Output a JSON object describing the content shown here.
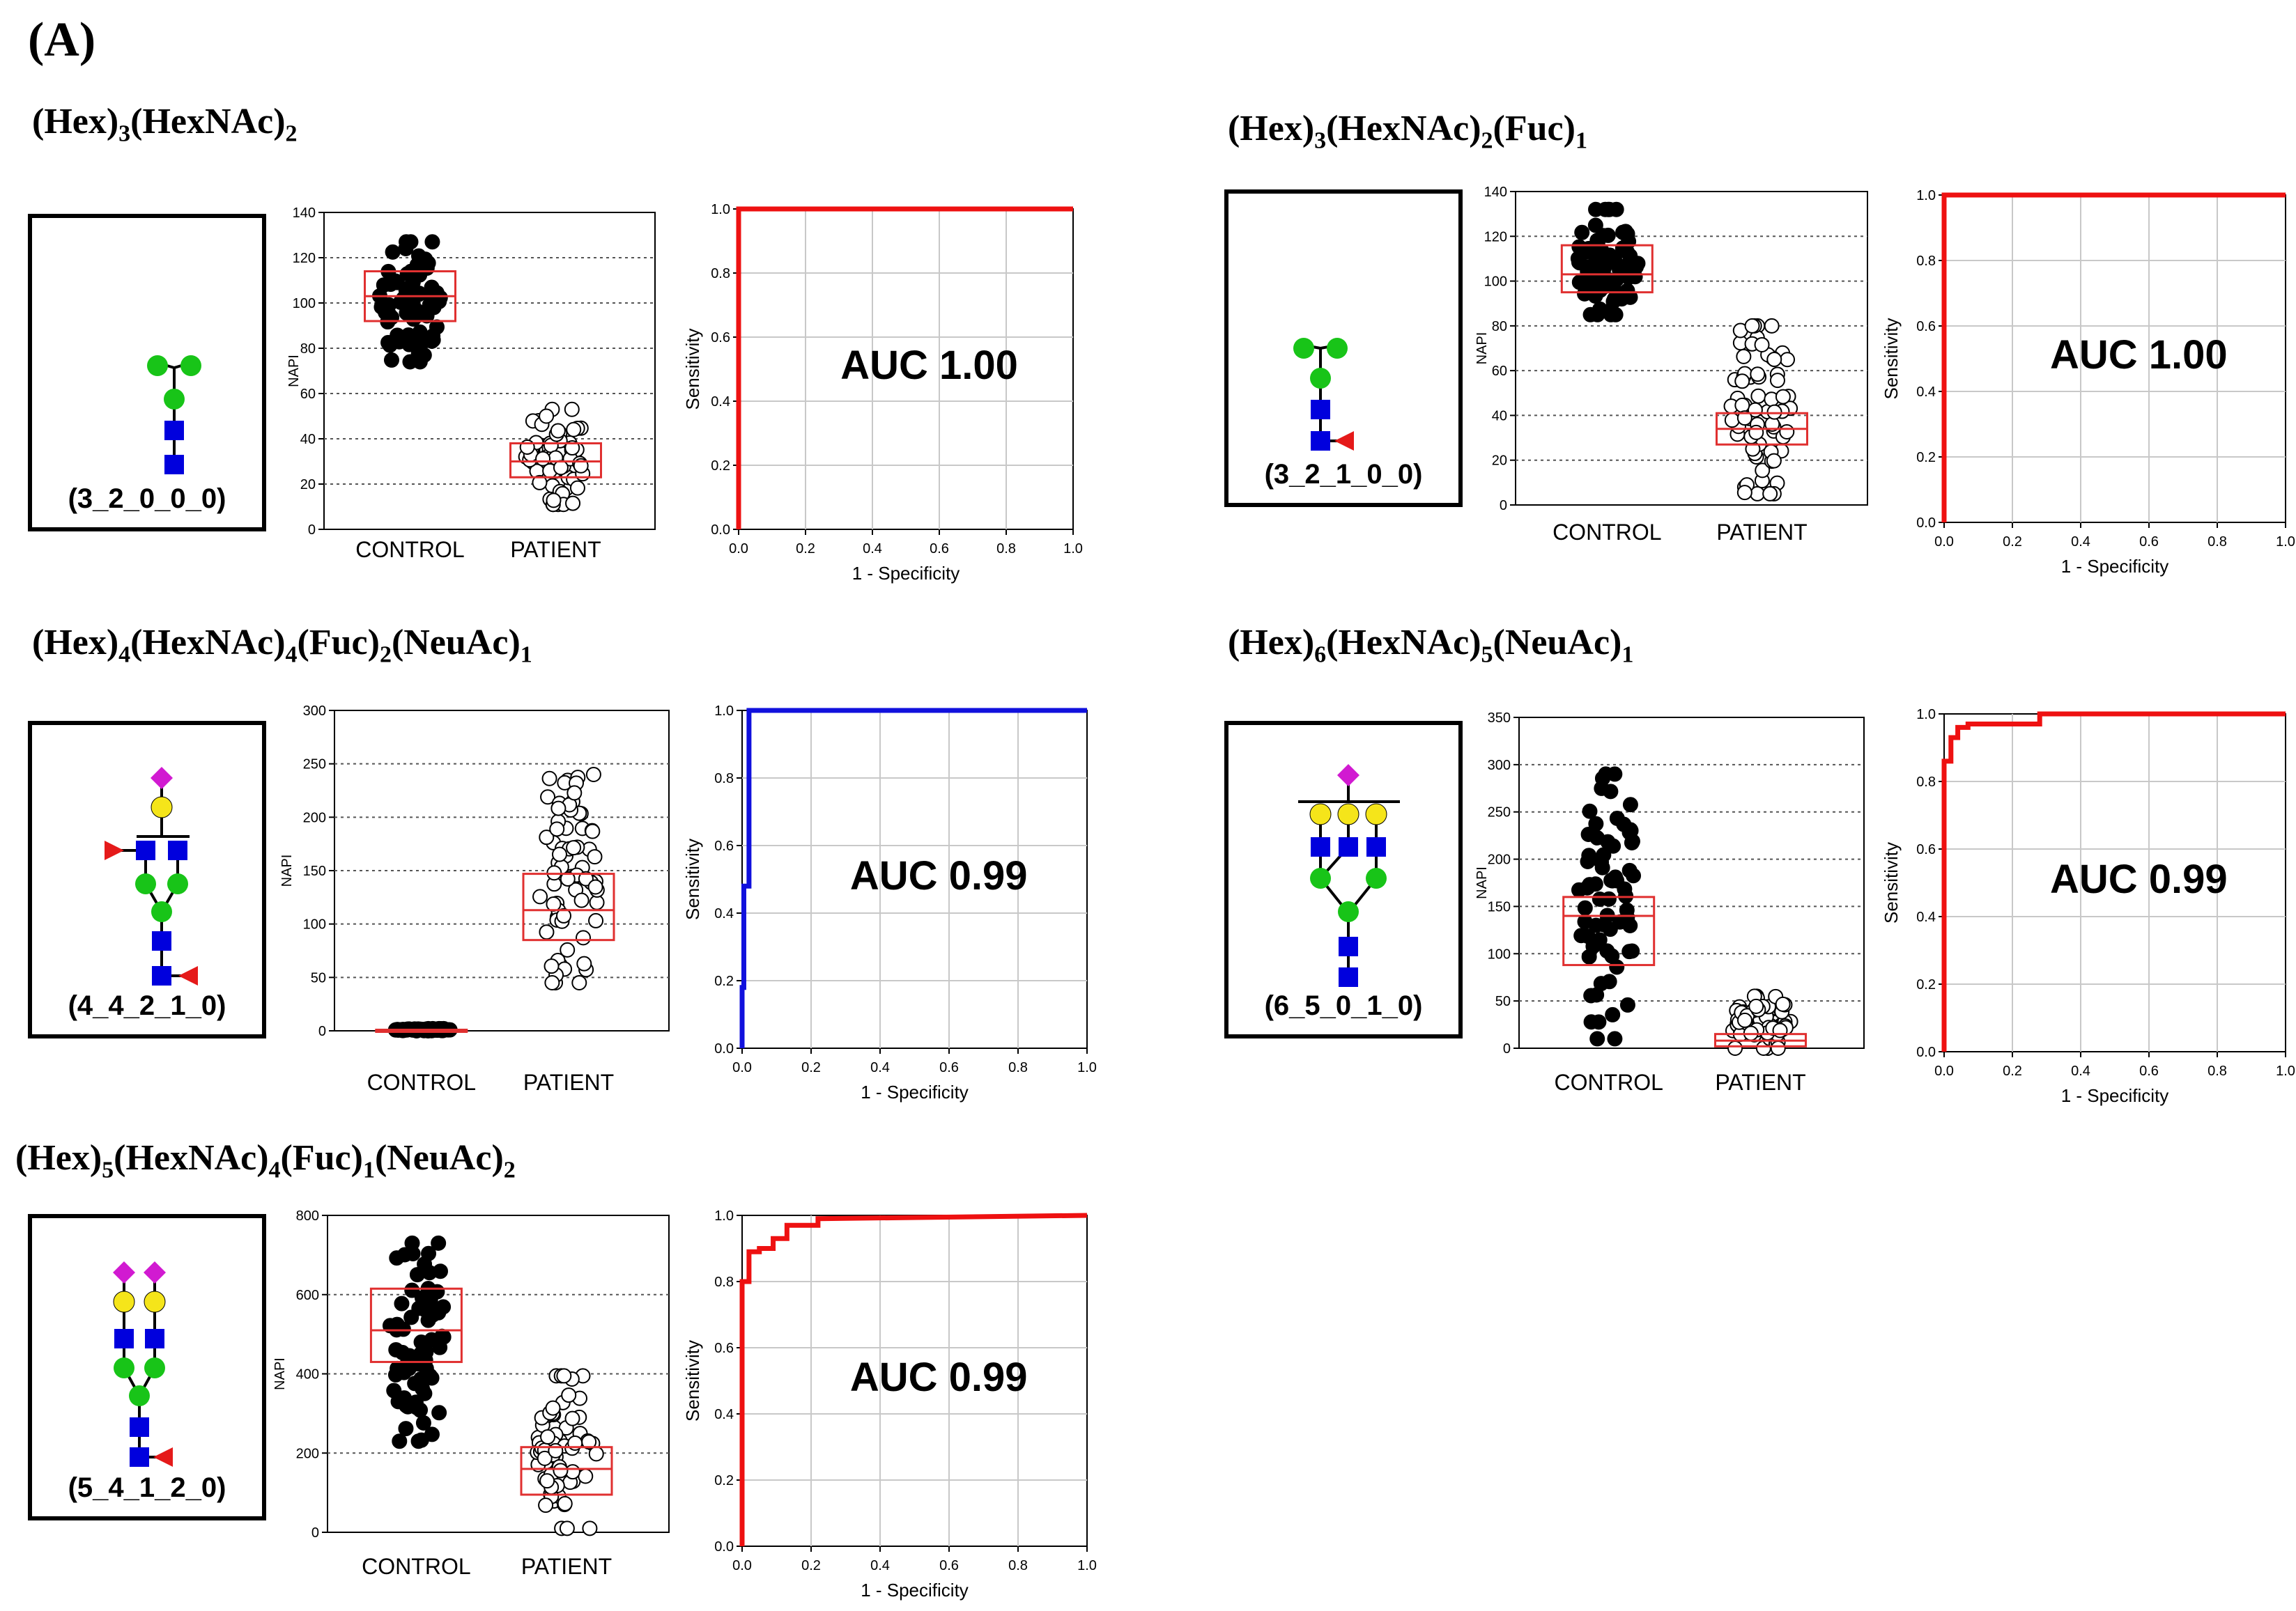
{
  "panel_label": "(A)",
  "colors": {
    "hex_circle": "#18c418",
    "hexnac_square": "#0000dd",
    "fuc_triangle": "#e51a1a",
    "neuac_diamond": "#d11ad1",
    "gal_circle": "#f5e51a",
    "box_red": "#e03030",
    "roc_red": "#ee1111",
    "roc_blue": "#1111dd"
  },
  "glycans": [
    {
      "code": "(3_2_0_0_0)",
      "title": [
        {
          "t": "(Hex)"
        },
        {
          "s": "3"
        },
        {
          "t": "(HexNAc)"
        },
        {
          "s": "2"
        }
      ],
      "structure": "3_2_0_0_0",
      "box_icons": [
        "hexnac-square-icon",
        "hexnac-square-icon",
        "hex-circle-icon",
        "hex-circle-icon",
        "hex-circle-icon"
      ]
    },
    {
      "code": "(3_2_1_0_0)",
      "title": [
        {
          "t": "(Hex)"
        },
        {
          "s": "3"
        },
        {
          "t": "(HexNAc)"
        },
        {
          "s": "2"
        },
        {
          "t": "(Fuc)"
        },
        {
          "s": "1"
        }
      ],
      "structure": "3_2_1_0_0"
    },
    {
      "code": "(4_4_2_1_0)",
      "title": [
        {
          "t": "(Hex)"
        },
        {
          "s": "4"
        },
        {
          "t": "(HexNAc)"
        },
        {
          "s": "4"
        },
        {
          "t": "(Fuc)"
        },
        {
          "s": "2"
        },
        {
          "t": "(NeuAc)"
        },
        {
          "s": "1"
        }
      ],
      "structure": "4_4_2_1_0"
    },
    {
      "code": "(6_5_0_1_0)",
      "title": [
        {
          "t": "(Hex)"
        },
        {
          "s": "6"
        },
        {
          "t": "(HexNAc)"
        },
        {
          "s": "5"
        },
        {
          "t": "(NeuAc)"
        },
        {
          "s": "1"
        }
      ],
      "structure": "6_5_0_1_0"
    },
    {
      "code": "(5_4_1_2_0)",
      "title": [
        {
          "t": "(Hex)"
        },
        {
          "s": "5"
        },
        {
          "t": "(HexNAc)"
        },
        {
          "s": "4"
        },
        {
          "t": "(Fuc)"
        },
        {
          "s": "1"
        },
        {
          "t": "(NeuAc)"
        },
        {
          "s": "2"
        }
      ],
      "structure": "5_4_1_2_0"
    }
  ],
  "chart_data": [
    {
      "type": "box-scatter",
      "id": "box1",
      "ylabel": "NAPI",
      "ylim": [
        0,
        140
      ],
      "yticks": [
        "0",
        "20",
        "40",
        "60",
        "80",
        "100",
        "120",
        "140"
      ],
      "categories": [
        "CONTROL",
        "PATIENT"
      ],
      "groups": [
        {
          "name": "CONTROL",
          "fill": "black",
          "q1": 92,
          "median": 103,
          "q3": 114,
          "min": 74,
          "max": 127
        },
        {
          "name": "PATIENT",
          "fill": "white",
          "q1": 23,
          "median": 30,
          "q3": 38,
          "min": 11,
          "max": 53
        }
      ]
    },
    {
      "type": "line",
      "id": "roc1",
      "xlabel": "1 - Specificity",
      "ylabel": "Sensitivity",
      "xticks": [
        "0.0",
        "0.2",
        "0.4",
        "0.6",
        "0.8",
        "1.0"
      ],
      "yticks": [
        "0.0",
        "0.2",
        "0.4",
        "0.6",
        "0.8",
        "1.0"
      ],
      "annotation": "AUC 1.00",
      "color": "red",
      "series": [
        {
          "name": "ROC",
          "x": [
            0,
            0,
            1
          ],
          "y": [
            0,
            1,
            1
          ]
        }
      ]
    },
    {
      "type": "box-scatter",
      "id": "box2",
      "ylabel": "NAPI",
      "ylim": [
        0,
        140
      ],
      "yticks": [
        "0",
        "20",
        "40",
        "60",
        "80",
        "100",
        "120",
        "140"
      ],
      "categories": [
        "CONTROL",
        "PATIENT"
      ],
      "groups": [
        {
          "name": "CONTROL",
          "fill": "black",
          "q1": 95,
          "median": 103,
          "q3": 116,
          "min": 85,
          "max": 132
        },
        {
          "name": "PATIENT",
          "fill": "white",
          "q1": 27,
          "median": 34,
          "q3": 41,
          "min": 5,
          "max": 80
        }
      ]
    },
    {
      "type": "line",
      "id": "roc2",
      "xlabel": "1 - Specificity",
      "ylabel": "Sensitivity",
      "xticks": [
        "0.0",
        "0.2",
        "0.4",
        "0.6",
        "0.8",
        "1.0"
      ],
      "yticks": [
        "0.0",
        "0.2",
        "0.4",
        "0.6",
        "0.8",
        "1.0"
      ],
      "annotation": "AUC 1.00",
      "color": "red",
      "series": [
        {
          "name": "ROC",
          "x": [
            0,
            0,
            1
          ],
          "y": [
            0,
            1,
            1
          ]
        }
      ]
    },
    {
      "type": "box-scatter",
      "id": "box3",
      "ylabel": "NAPI",
      "ylim": [
        0,
        300
      ],
      "yticks": [
        "0",
        "50",
        "100",
        "150",
        "200",
        "250",
        "300"
      ],
      "categories": [
        "CONTROL",
        "PATIENT"
      ],
      "groups": [
        {
          "name": "CONTROL",
          "fill": "black",
          "q1": 0,
          "median": 0,
          "q3": 1,
          "min": 0,
          "max": 2
        },
        {
          "name": "PATIENT",
          "fill": "white",
          "q1": 85,
          "median": 113,
          "q3": 147,
          "min": 45,
          "max": 240
        }
      ]
    },
    {
      "type": "line",
      "id": "roc3",
      "xlabel": "1 - Specificity",
      "ylabel": "Sensitivity",
      "xticks": [
        "0.0",
        "0.2",
        "0.4",
        "0.6",
        "0.8",
        "1.0"
      ],
      "yticks": [
        "0.0",
        "0.2",
        "0.4",
        "0.6",
        "0.8",
        "1.0"
      ],
      "annotation": "AUC 0.99",
      "color": "blue",
      "series": [
        {
          "name": "ROC",
          "x": [
            0,
            0,
            0.005,
            0.005,
            0.02,
            0.02,
            1
          ],
          "y": [
            0,
            0.18,
            0.18,
            0.48,
            0.48,
            1,
            1
          ]
        }
      ]
    },
    {
      "type": "box-scatter",
      "id": "box4",
      "ylabel": "NAPI",
      "ylim": [
        0,
        350
      ],
      "yticks": [
        "0",
        "50",
        "100",
        "150",
        "200",
        "250",
        "300",
        "350"
      ],
      "categories": [
        "CONTROL",
        "PATIENT"
      ],
      "groups": [
        {
          "name": "CONTROL",
          "fill": "black",
          "q1": 88,
          "median": 140,
          "q3": 160,
          "min": 10,
          "max": 290
        },
        {
          "name": "PATIENT",
          "fill": "white",
          "q1": 2,
          "median": 8,
          "q3": 15,
          "min": 0,
          "max": 55
        }
      ]
    },
    {
      "type": "line",
      "id": "roc4",
      "xlabel": "1 - Specificity",
      "ylabel": "Sensitivity",
      "xticks": [
        "0.0",
        "0.2",
        "0.4",
        "0.6",
        "0.8",
        "1.0"
      ],
      "yticks": [
        "0.0",
        "0.2",
        "0.4",
        "0.6",
        "0.8",
        "1.0"
      ],
      "annotation": "AUC 0.99",
      "color": "red",
      "series": [
        {
          "name": "ROC",
          "x": [
            0,
            0,
            0.02,
            0.02,
            0.04,
            0.04,
            0.07,
            0.07,
            0.28,
            0.28,
            1
          ],
          "y": [
            0,
            0.86,
            0.86,
            0.93,
            0.93,
            0.96,
            0.96,
            0.97,
            0.97,
            1,
            1
          ]
        }
      ]
    },
    {
      "type": "box-scatter",
      "id": "box5",
      "ylabel": "NAPI",
      "ylim": [
        0,
        800
      ],
      "yticks": [
        "0",
        "200",
        "400",
        "600",
        "800"
      ],
      "categories": [
        "CONTROL",
        "PATIENT"
      ],
      "groups": [
        {
          "name": "CONTROL",
          "fill": "black",
          "q1": 430,
          "median": 510,
          "q3": 615,
          "min": 230,
          "max": 730
        },
        {
          "name": "PATIENT",
          "fill": "white",
          "q1": 95,
          "median": 160,
          "q3": 215,
          "min": 10,
          "max": 395
        }
      ]
    },
    {
      "type": "line",
      "id": "roc5",
      "xlabel": "1 - Specificity",
      "ylabel": "Sensitivity",
      "xticks": [
        "0.0",
        "0.2",
        "0.4",
        "0.6",
        "0.8",
        "1.0"
      ],
      "yticks": [
        "0.0",
        "0.2",
        "0.4",
        "0.6",
        "0.8",
        "1.0"
      ],
      "annotation": "AUC 0.99",
      "color": "red",
      "series": [
        {
          "name": "ROC",
          "x": [
            0,
            0,
            0.02,
            0.02,
            0.05,
            0.05,
            0.09,
            0.09,
            0.13,
            0.13,
            0.22,
            0.22,
            1
          ],
          "y": [
            0,
            0.8,
            0.8,
            0.89,
            0.89,
            0.9,
            0.9,
            0.93,
            0.93,
            0.97,
            0.97,
            0.99,
            1
          ]
        }
      ]
    }
  ]
}
